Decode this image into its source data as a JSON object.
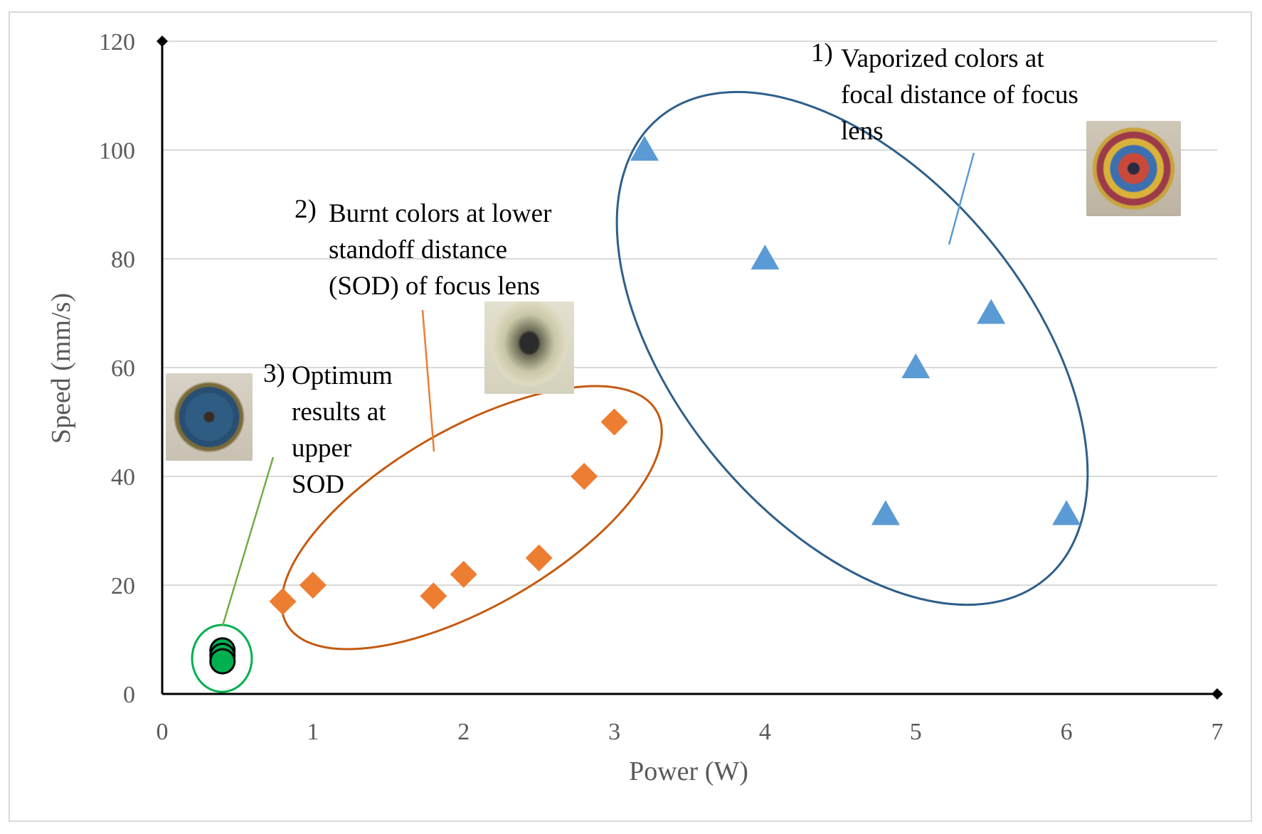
{
  "chart_data": {
    "type": "scatter",
    "title": "",
    "xlabel": "Power (W)",
    "ylabel": "Speed (mm/s)",
    "xlim": [
      0,
      7
    ],
    "ylim": [
      0,
      120
    ],
    "xticks": [
      "0",
      "1",
      "2",
      "3",
      "4",
      "5",
      "6",
      "7"
    ],
    "yticks": [
      "0",
      "20",
      "40",
      "60",
      "80",
      "100",
      "120"
    ],
    "grid": true,
    "colors": {
      "vaporized": "#5b9bd5",
      "burnt": "#ed7d31",
      "optimum": "#00b050",
      "vaporized_ellipse": "#2e5f8a",
      "burnt_ellipse": "#c55a11",
      "optimum_ellipse": "#00b050",
      "grid": "#d9d9d9",
      "axis": "#000000"
    },
    "series": [
      {
        "name": "Vaporized",
        "marker": "triangle",
        "points": [
          [
            3.2,
            100
          ],
          [
            4.0,
            80
          ],
          [
            5.5,
            70
          ],
          [
            5.0,
            60
          ],
          [
            4.8,
            33
          ],
          [
            6.0,
            33
          ]
        ]
      },
      {
        "name": "Burnt",
        "marker": "diamond",
        "points": [
          [
            0.8,
            17
          ],
          [
            1.0,
            20
          ],
          [
            1.8,
            18
          ],
          [
            2.0,
            22
          ],
          [
            2.5,
            25
          ],
          [
            2.8,
            40
          ],
          [
            3.0,
            50
          ]
        ]
      },
      {
        "name": "Optimum",
        "marker": "circle",
        "points": [
          [
            0.4,
            8
          ],
          [
            0.4,
            7
          ],
          [
            0.4,
            6
          ]
        ]
      }
    ],
    "annotations": [
      {
        "num": "1)",
        "lines": [
          "Vaporized colors at",
          "focal distance of focus",
          "lens"
        ]
      },
      {
        "num": "2)",
        "lines": [
          "Burnt colors at lower",
          "standoff distance",
          "(SOD) of focus lens"
        ]
      },
      {
        "num": "3)",
        "lines": [
          "Optimum",
          "results at",
          "upper",
          "SOD"
        ]
      }
    ]
  }
}
